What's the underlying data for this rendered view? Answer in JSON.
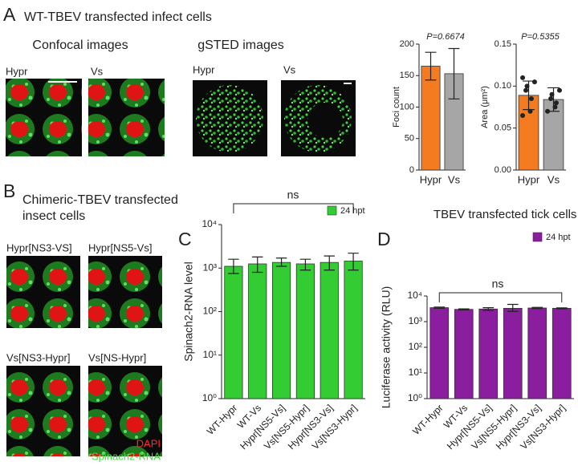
{
  "panels": {
    "A": {
      "label": "A",
      "title": "WT-TBEV transfected infect cells",
      "confocal": "Confocal images",
      "gsted": "gSTED images",
      "images": [
        "Hypr",
        "Vs",
        "Hypr",
        "Vs"
      ]
    },
    "B": {
      "label": "B",
      "title": [
        "Chimeric-TBEV transfected",
        "insect cells"
      ],
      "images": [
        "Hypr[NS3-VS]",
        "Hypr[NS5-Vs]",
        "Vs[NS3-Hypr]",
        "Vs[NS-Hypr]"
      ],
      "stain": [
        "DAPI",
        "Spinach2-RNA"
      ]
    },
    "C": {
      "label": "C"
    },
    "D": {
      "label": "D"
    }
  },
  "chart_data": [
    {
      "type": "bar",
      "ylabel": "Foci count",
      "annotation": "P=0.6674",
      "categories": [
        "Hypr",
        "Vs"
      ],
      "values": [
        165,
        153
      ],
      "errors": [
        22,
        40
      ],
      "colors": [
        "#f47b20",
        "#a6a6a6"
      ],
      "ylim": [
        0,
        200
      ],
      "yticks": [
        0,
        50,
        100,
        150,
        200
      ]
    },
    {
      "type": "bar",
      "ylabel": "Area (μm²)",
      "annotation": "P=0.5355",
      "categories": [
        "Hypr",
        "Vs"
      ],
      "values": [
        0.089,
        0.084
      ],
      "errors": [
        0.017,
        0.014
      ],
      "colors": [
        "#f47b20",
        "#a6a6a6"
      ],
      "points": [
        [
          0.065,
          0.07,
          0.085,
          0.095,
          0.1,
          0.105,
          0.11
        ],
        [
          0.07,
          0.075,
          0.08,
          0.085,
          0.09,
          0.095
        ]
      ],
      "ylim": [
        0,
        0.15
      ],
      "yticks": [
        {
          "value": 0,
          "label": "0.00"
        },
        0.05,
        {
          "value": 0.1,
          "label": "0.10"
        },
        0.15
      ]
    },
    {
      "type": "bar",
      "log": true,
      "ylabel": "Spinach2-RNA level",
      "annotation": "ns",
      "categories": [
        "WT-Hypr",
        "WT-Vs",
        "Hypr[NS5-Vs]",
        "Vs[NS5-Hypr]",
        "Hypr[NS3-Vs]",
        "Vs[NS3-Hypr]"
      ],
      "series": [
        {
          "name": "24 hpt",
          "color": "#33cc33",
          "values": [
            1100,
            1250,
            1350,
            1250,
            1350,
            1450
          ],
          "lower": [
            750,
            800,
            1100,
            900,
            900,
            900
          ],
          "upper": [
            1600,
            1800,
            1700,
            1600,
            1900,
            2200
          ]
        }
      ],
      "ylim": [
        1,
        10000
      ],
      "yticks": [
        {
          "value": 1,
          "label": "10⁰"
        },
        {
          "value": 10,
          "label": "10¹"
        },
        {
          "value": 100,
          "label": "10²"
        },
        {
          "value": 1000,
          "label": "10³"
        },
        {
          "value": 10000,
          "label": "10⁴"
        }
      ]
    },
    {
      "type": "bar",
      "log": true,
      "title": "TBEV transfected tick cells",
      "ylabel": "Luciferase activity (RLU)",
      "annotation": "ns",
      "categories": [
        "WT-Hypr",
        "WT-Vs",
        "Hypr[NS5-Vs]",
        "Vs[NS5-Hypr]",
        "Hypr[NS3-Vs]",
        "Vs[NS3-Hypr]"
      ],
      "series": [
        {
          "name": "24 hpt",
          "color": "#8a1e9e",
          "values": [
            3500,
            3000,
            3100,
            3300,
            3400,
            3300
          ],
          "lower": [
            3300,
            2850,
            2700,
            2500,
            3200,
            3150
          ],
          "upper": [
            3700,
            3150,
            3500,
            4700,
            3600,
            3450
          ]
        }
      ],
      "ylim": [
        1,
        10000
      ],
      "yticks": [
        {
          "value": 1,
          "label": "10⁰"
        },
        {
          "value": 10,
          "label": "10¹"
        },
        {
          "value": 100,
          "label": "10²"
        },
        {
          "value": 1000,
          "label": "10³"
        },
        {
          "value": 10000,
          "label": "10⁴"
        }
      ]
    }
  ]
}
